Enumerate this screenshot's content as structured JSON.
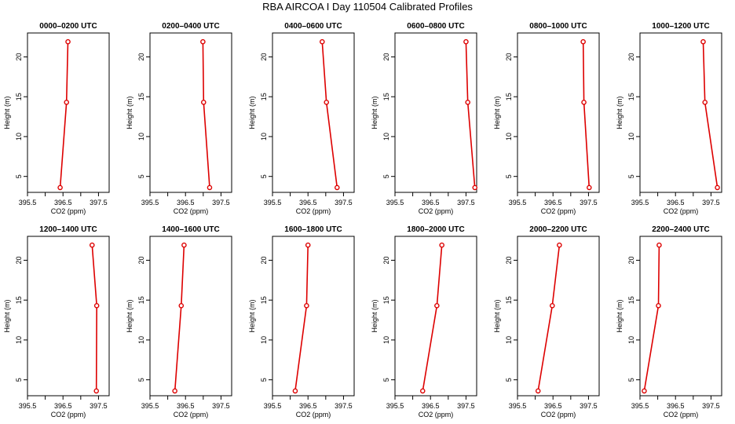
{
  "title": "RBA AIRCOA I  Day 110504  Calibrated Profiles",
  "colors": {
    "series": "#dd0000",
    "axis": "#000000"
  },
  "chart_data": [
    {
      "type": "line",
      "title": "0000–0200 UTC",
      "xlabel": "CO2 (ppm)",
      "ylabel": "Height (m)",
      "xlim": [
        395.5,
        397.8
      ],
      "ylim": [
        3,
        23
      ],
      "xticks": [
        "395.5",
        "396.5",
        "397.5"
      ],
      "yticks": [
        "5",
        "10",
        "15",
        "20"
      ],
      "series": [
        {
          "x": [
            396.42,
            396.6,
            396.64
          ],
          "y": [
            3.6,
            14.3,
            21.9
          ]
        }
      ]
    },
    {
      "type": "line",
      "title": "0200–0400 UTC",
      "xlabel": "CO2 (ppm)",
      "ylabel": "Height (m)",
      "xlim": [
        395.5,
        397.8
      ],
      "ylim": [
        3,
        23
      ],
      "xticks": [
        "395.5",
        "396.5",
        "397.5"
      ],
      "yticks": [
        "5",
        "10",
        "15",
        "20"
      ],
      "series": [
        {
          "x": [
            397.18,
            397.01,
            396.99
          ],
          "y": [
            3.6,
            14.3,
            21.9
          ]
        }
      ]
    },
    {
      "type": "line",
      "title": "0400–0600 UTC",
      "xlabel": "CO2 (ppm)",
      "ylabel": "Height (m)",
      "xlim": [
        395.5,
        397.8
      ],
      "ylim": [
        3,
        23
      ],
      "xticks": [
        "395.5",
        "396.5",
        "397.5"
      ],
      "yticks": [
        "5",
        "10",
        "15",
        "20"
      ],
      "series": [
        {
          "x": [
            397.32,
            397.02,
            396.9
          ],
          "y": [
            3.6,
            14.3,
            21.9
          ]
        }
      ]
    },
    {
      "type": "line",
      "title": "0600–0800 UTC",
      "xlabel": "CO2 (ppm)",
      "ylabel": "Height (m)",
      "xlim": [
        395.5,
        397.8
      ],
      "ylim": [
        3,
        23
      ],
      "xticks": [
        "395.5",
        "396.5",
        "397.5"
      ],
      "yticks": [
        "5",
        "10",
        "15",
        "20"
      ],
      "series": [
        {
          "x": [
            397.75,
            397.55,
            397.5
          ],
          "y": [
            3.6,
            14.3,
            21.9
          ]
        }
      ]
    },
    {
      "type": "line",
      "title": "0800–1000 UTC",
      "xlabel": "CO2 (ppm)",
      "ylabel": "Height (m)",
      "xlim": [
        395.5,
        397.8
      ],
      "ylim": [
        3,
        23
      ],
      "xticks": [
        "395.5",
        "396.5",
        "397.5"
      ],
      "yticks": [
        "5",
        "10",
        "15",
        "20"
      ],
      "series": [
        {
          "x": [
            397.52,
            397.37,
            397.35
          ],
          "y": [
            3.6,
            14.3,
            21.9
          ]
        }
      ]
    },
    {
      "type": "line",
      "title": "1000–1200 UTC",
      "xlabel": "CO2 (ppm)",
      "ylabel": "Height (m)",
      "xlim": [
        395.5,
        397.8
      ],
      "ylim": [
        3,
        23
      ],
      "xticks": [
        "395.5",
        "396.5",
        "397.5"
      ],
      "yticks": [
        "5",
        "10",
        "15",
        "20"
      ],
      "series": [
        {
          "x": [
            397.68,
            397.33,
            397.28
          ],
          "y": [
            3.6,
            14.3,
            21.9
          ]
        }
      ]
    },
    {
      "type": "line",
      "title": "1200–1400 UTC",
      "xlabel": "CO2 (ppm)",
      "ylabel": "Height (m)",
      "xlim": [
        395.5,
        397.8
      ],
      "ylim": [
        3,
        23
      ],
      "xticks": [
        "395.5",
        "396.5",
        "397.5"
      ],
      "yticks": [
        "5",
        "10",
        "15",
        "20"
      ],
      "series": [
        {
          "x": [
            397.44,
            397.45,
            397.32
          ],
          "y": [
            3.6,
            14.3,
            21.9
          ]
        }
      ]
    },
    {
      "type": "line",
      "title": "1400–1600 UTC",
      "xlabel": "CO2 (ppm)",
      "ylabel": "Height (m)",
      "xlim": [
        395.5,
        397.8
      ],
      "ylim": [
        3,
        23
      ],
      "xticks": [
        "395.5",
        "396.5",
        "397.5"
      ],
      "yticks": [
        "5",
        "10",
        "15",
        "20"
      ],
      "series": [
        {
          "x": [
            396.2,
            396.38,
            396.46
          ],
          "y": [
            3.6,
            14.3,
            21.9
          ]
        }
      ]
    },
    {
      "type": "line",
      "title": "1600–1800 UTC",
      "xlabel": "CO2 (ppm)",
      "ylabel": "Height (m)",
      "xlim": [
        395.5,
        397.8
      ],
      "ylim": [
        3,
        23
      ],
      "xticks": [
        "395.5",
        "396.5",
        "397.5"
      ],
      "yticks": [
        "5",
        "10",
        "15",
        "20"
      ],
      "series": [
        {
          "x": [
            396.14,
            396.46,
            396.5
          ],
          "y": [
            3.6,
            14.3,
            21.9
          ]
        }
      ]
    },
    {
      "type": "line",
      "title": "1800–2000 UTC",
      "xlabel": "CO2 (ppm)",
      "ylabel": "Height (m)",
      "xlim": [
        395.5,
        397.8
      ],
      "ylim": [
        3,
        23
      ],
      "xticks": [
        "395.5",
        "396.5",
        "397.5"
      ],
      "yticks": [
        "5",
        "10",
        "15",
        "20"
      ],
      "series": [
        {
          "x": [
            396.28,
            396.68,
            396.82
          ],
          "y": [
            3.6,
            14.3,
            21.9
          ]
        }
      ]
    },
    {
      "type": "line",
      "title": "2000–2200 UTC",
      "xlabel": "CO2 (ppm)",
      "ylabel": "Height (m)",
      "xlim": [
        395.5,
        397.8
      ],
      "ylim": [
        3,
        23
      ],
      "xticks": [
        "395.5",
        "396.5",
        "397.5"
      ],
      "yticks": [
        "5",
        "10",
        "15",
        "20"
      ],
      "series": [
        {
          "x": [
            396.08,
            396.48,
            396.68
          ],
          "y": [
            3.6,
            14.3,
            21.9
          ]
        }
      ]
    },
    {
      "type": "line",
      "title": "2200–2400 UTC",
      "xlabel": "CO2 (ppm)",
      "ylabel": "Height (m)",
      "xlim": [
        395.5,
        397.8
      ],
      "ylim": [
        3,
        23
      ],
      "xticks": [
        "395.5",
        "396.5",
        "397.5"
      ],
      "yticks": [
        "5",
        "10",
        "15",
        "20"
      ],
      "series": [
        {
          "x": [
            395.62,
            396.02,
            396.04
          ],
          "y": [
            3.6,
            14.3,
            21.9
          ]
        }
      ]
    }
  ]
}
